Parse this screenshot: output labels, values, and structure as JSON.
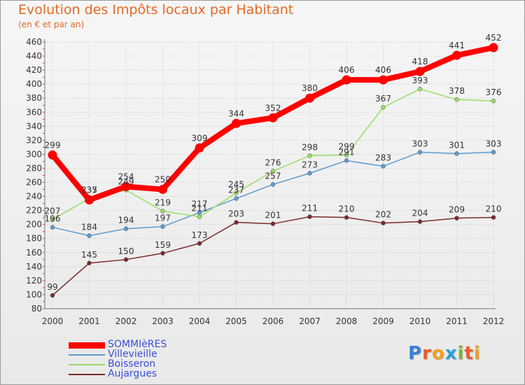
{
  "title": "Evolution des Impôts locaux par Habitant",
  "subtitle": "(en € et par an)",
  "logo": {
    "letters": [
      "P",
      "r",
      "o",
      "x",
      "i",
      "t",
      "i"
    ],
    "colors": [
      "#3a7fd6",
      "#e85d2a",
      "#f0a020",
      "#2aa0d6",
      "#79b82c",
      "#e85d2a",
      "#f0a020"
    ]
  },
  "chart_data": {
    "type": "line",
    "title": "Evolution des Impôts locaux par Habitant",
    "subtitle": "(en € et par an)",
    "xlabel": "",
    "ylabel": "",
    "x": [
      "2000",
      "2001",
      "2002",
      "2003",
      "2004",
      "2005",
      "2006",
      "2007",
      "2008",
      "2009",
      "2010",
      "2011",
      "2012"
    ],
    "ylim": [
      80,
      460
    ],
    "yticks": [
      "80",
      "100",
      "120",
      "140",
      "160",
      "180",
      "200",
      "220",
      "240",
      "260",
      "280",
      "300",
      "320",
      "340",
      "360",
      "380",
      "400",
      "420",
      "440",
      "460"
    ],
    "grid": true,
    "legend_position": "bottom-left",
    "series": [
      {
        "name": "SOMMIèRES",
        "color": "#ff0000",
        "values": [
          299,
          235,
          254,
          250,
          309,
          344,
          352,
          380,
          406,
          406,
          418,
          441,
          452
        ]
      },
      {
        "name": "Villevieille",
        "color": "#5d9bd0",
        "values": [
          196,
          184,
          194,
          197,
          217,
          237,
          257,
          273,
          291,
          283,
          303,
          301,
          303
        ]
      },
      {
        "name": "Boisseron",
        "color": "#99dd66",
        "values": [
          207,
          237,
          249,
          219,
          211,
          245,
          276,
          298,
          299,
          367,
          393,
          378,
          376
        ]
      },
      {
        "name": "Aujargues",
        "color": "#7a2a2a",
        "values": [
          99,
          145,
          150,
          159,
          173,
          203,
          201,
          211,
          210,
          202,
          204,
          209,
          210
        ]
      }
    ]
  }
}
